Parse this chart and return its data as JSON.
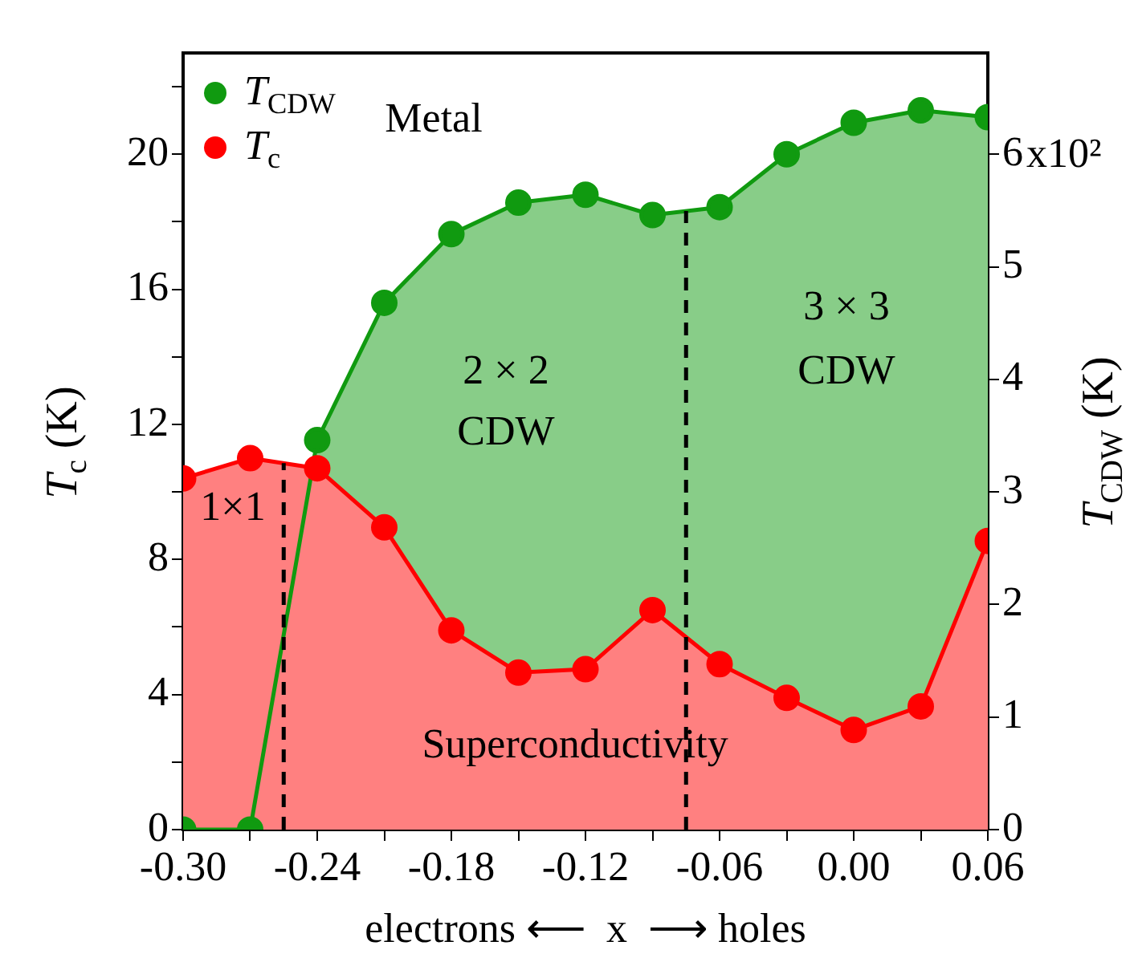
{
  "chart_data": {
    "type": "area",
    "x": [
      -0.3,
      -0.27,
      -0.24,
      -0.21,
      -0.18,
      -0.15,
      -0.12,
      -0.09,
      -0.06,
      -0.03,
      0.0,
      0.03,
      0.06
    ],
    "series": [
      {
        "name": "T$_{CDW}$",
        "color": "#109a10",
        "axis": "y2",
        "values": [
          0,
          0,
          3.46,
          4.68,
          5.29,
          5.57,
          5.64,
          5.46,
          5.53,
          6.0,
          6.28,
          6.39,
          6.33
        ]
      },
      {
        "name": "T$_{c}$",
        "color": "#ff0000",
        "values": [
          10.4,
          11.0,
          10.7,
          8.95,
          5.9,
          4.65,
          4.75,
          6.5,
          4.9,
          3.9,
          2.95,
          3.65,
          8.55
        ]
      }
    ],
    "xlabel": "electrons ⟵  x  ⟶ holes",
    "ylabel": "T$_{c}$ (K)",
    "y2label": "T$_{CDW}$ (K)",
    "xlim": [
      -0.3,
      0.06
    ],
    "xticks": [
      {
        "value": -0.3,
        "label": "-0.30"
      },
      {
        "value": -0.27,
        "label": null
      },
      {
        "value": -0.24,
        "label": "-0.24"
      },
      {
        "value": -0.21,
        "label": null
      },
      {
        "value": -0.18,
        "label": "-0.18"
      },
      {
        "value": -0.15,
        "label": null
      },
      {
        "value": -0.12,
        "label": "-0.12"
      },
      {
        "value": -0.09,
        "label": null
      },
      {
        "value": -0.06,
        "label": "-0.06"
      },
      {
        "value": -0.03,
        "label": null
      },
      {
        "value": 0,
        "label": "0.00"
      },
      {
        "value": 0.03,
        "label": null
      },
      {
        "value": 0.06,
        "label": "0.06"
      }
    ],
    "ylim": [
      0,
      23
    ],
    "yticks": [
      0,
      {
        "value": 2,
        "label": null
      },
      4,
      {
        "value": 6,
        "label": null
      },
      8,
      {
        "value": 10,
        "label": null
      },
      12,
      {
        "value": 14,
        "label": null
      },
      16,
      {
        "value": 18,
        "label": null
      },
      20,
      {
        "value": 22,
        "label": null
      }
    ],
    "y2lim": [
      0,
      6.9
    ],
    "y2ticks": [
      0,
      1,
      2,
      3,
      4,
      5,
      6
    ],
    "ref_lines": [
      {
        "axis": "x",
        "value": -0.255,
        "line_style": "dashed",
        "color": "#000000"
      },
      {
        "axis": "x",
        "value": -0.075,
        "line_style": "dashed",
        "color": "#000000"
      }
    ],
    "annotations": [
      "Metal",
      "2 × 2",
      "CDW",
      "3 × 3",
      "CDW",
      "1×1",
      "Superconductivity",
      "x10²"
    ],
    "legend": "top left",
    "marker": "circle",
    "line_style": "solid"
  }
}
